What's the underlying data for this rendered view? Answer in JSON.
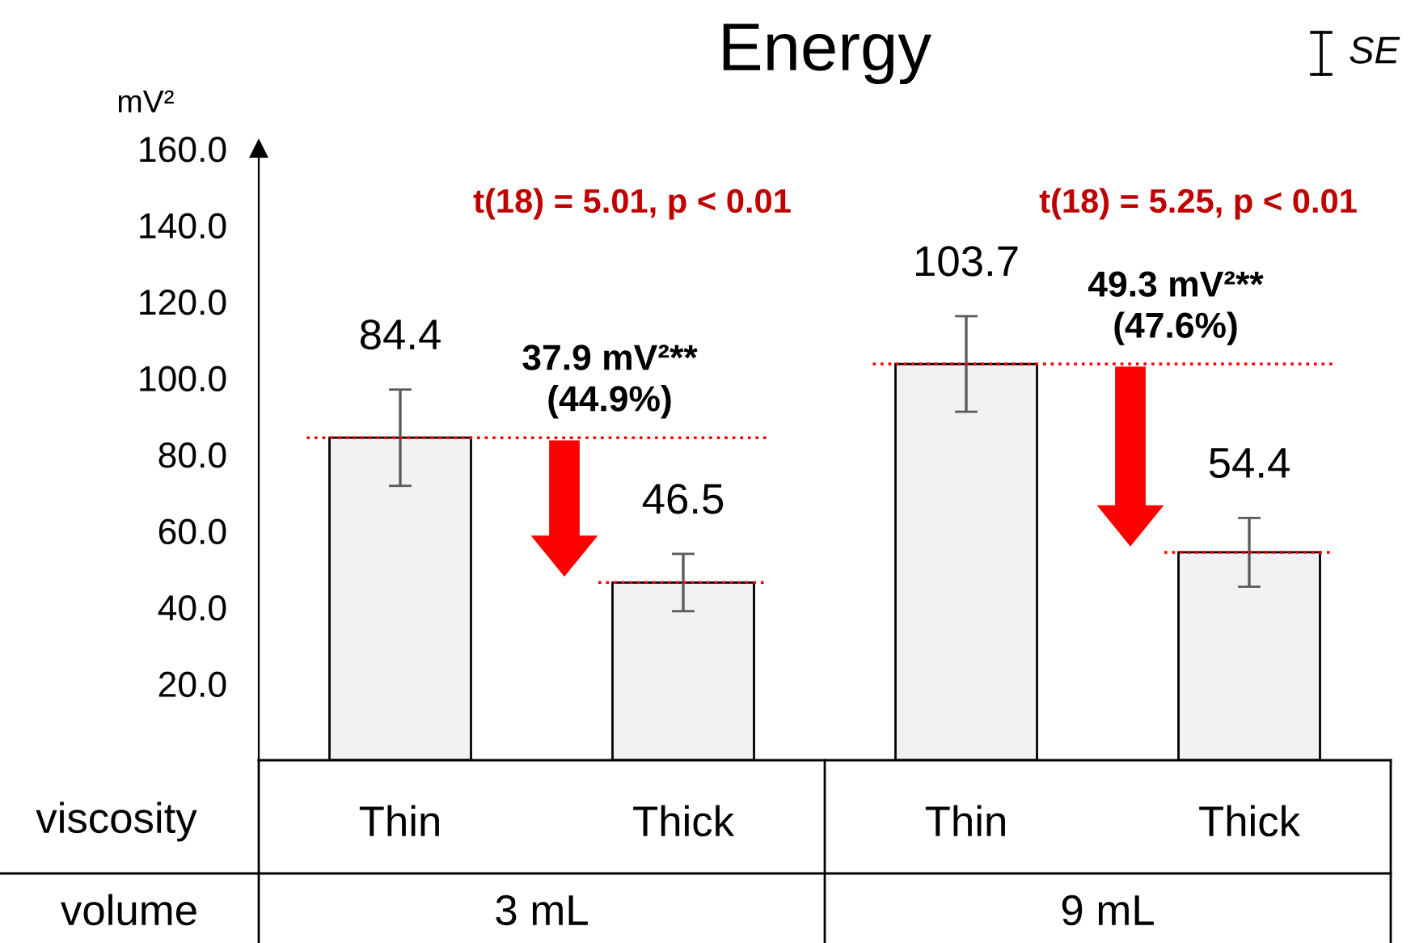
{
  "chart_data": {
    "type": "bar",
    "title": "Energy",
    "ylabel": "mV²",
    "categories": [
      "Thin",
      "Thick",
      "Thin",
      "Thick"
    ],
    "values": [
      84.4,
      46.5,
      103.7,
      54.4
    ],
    "errors": [
      12.6,
      7.5,
      12.5,
      9.0
    ],
    "color": "#f2f2f2",
    "data_labels": true,
    "ylim": [
      0,
      160
    ],
    "yticks": [
      {
        "value": 20,
        "label": "20.0"
      },
      {
        "value": 40,
        "label": "40.0"
      },
      {
        "value": 60,
        "label": "60.0"
      },
      {
        "value": 80,
        "label": "80.0"
      },
      {
        "value": 100,
        "label": "100.0"
      },
      {
        "value": 120,
        "label": "120.0"
      },
      {
        "value": 140,
        "label": "140.0"
      },
      {
        "value": 160,
        "label": "160.0"
      }
    ],
    "ref_lines": [
      {
        "axis": "y",
        "value": 84.4,
        "color": "#ff0000",
        "line_style": "dotted"
      },
      {
        "axis": "y",
        "value": 46.5,
        "color": "#ff0000",
        "line_style": "dotted"
      },
      {
        "axis": "y",
        "value": 103.7,
        "color": "#ff0000",
        "line_style": "dotted"
      },
      {
        "axis": "y",
        "value": 54.4,
        "color": "#ff0000",
        "line_style": "dotted"
      }
    ],
    "annotations": [
      "t(18) = 5.01, p < 0.01",
      "t(18) = 5.25, p < 0.01",
      "37.9 mV²**\n(44.9%)",
      "49.3 mV²**\n(47.6%)",
      "SE",
      "viscosity",
      "volume",
      "3 mL",
      "9 mL"
    ],
    "grid": false,
    "legend": false
  }
}
